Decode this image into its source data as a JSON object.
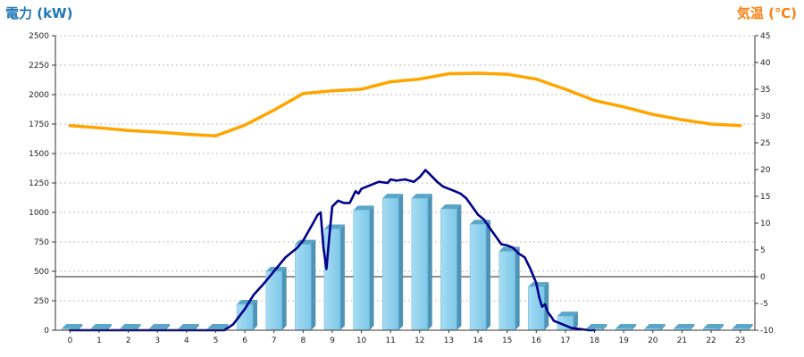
{
  "chart_data": {
    "type": "bar+line",
    "title": "",
    "left_axis": {
      "label": "電力 (kW)",
      "min": 0,
      "max": 2500,
      "ticks": [
        0,
        250,
        500,
        750,
        1000,
        1250,
        1500,
        1750,
        2000,
        2250,
        2500
      ]
    },
    "right_axis": {
      "label": "気温 (℃)",
      "min": -10,
      "max": 45,
      "ticks": [
        -10,
        -5,
        0,
        5,
        10,
        15,
        20,
        25,
        30,
        35,
        40,
        45
      ]
    },
    "x_ticks": [
      0,
      1,
      2,
      3,
      4,
      5,
      6,
      7,
      8,
      9,
      10,
      11,
      12,
      13,
      14,
      15,
      16,
      17,
      18,
      19,
      20,
      21,
      22,
      23
    ],
    "grid": true,
    "reference_line": {
      "axis": "right",
      "value": 0
    },
    "series": [
      {
        "type": "bar",
        "axis": "left",
        "values": [
          0,
          0,
          0,
          0,
          0,
          0,
          220,
          500,
          730,
          860,
          1020,
          1120,
          1120,
          1030,
          900,
          670,
          370,
          120,
          10,
          5,
          5,
          5,
          5,
          5
        ]
      },
      {
        "type": "line",
        "axis": "left",
        "color": "#00008b",
        "x": [
          0,
          1,
          2,
          3,
          4,
          5,
          5.3,
          5.6,
          6,
          6.3,
          6.6,
          7,
          7.4,
          7.8,
          8,
          8.3,
          8.5,
          8.6,
          8.7,
          8.8,
          8.9,
          9,
          9.2,
          9.4,
          9.6,
          9.8,
          9.9,
          10,
          10.3,
          10.6,
          10.9,
          11,
          11.2,
          11.5,
          11.8,
          12,
          12.2,
          12.4,
          12.6,
          12.8,
          13,
          13.2,
          13.4,
          13.6,
          13.8,
          14,
          14.2,
          14.4,
          14.6,
          14.8,
          15,
          15.2,
          15.4,
          15.6,
          15.8,
          16,
          16.1,
          16.2,
          16.3,
          16.4,
          16.5,
          16.6,
          16.8,
          17,
          17.2,
          17.5,
          17.8,
          18
        ],
        "values": [
          0,
          0,
          0,
          0,
          0,
          0,
          0,
          50,
          180,
          300,
          380,
          500,
          620,
          700,
          760,
          890,
          980,
          1000,
          700,
          520,
          800,
          1050,
          1100,
          1080,
          1080,
          1180,
          1160,
          1200,
          1230,
          1260,
          1250,
          1280,
          1270,
          1280,
          1260,
          1300,
          1360,
          1310,
          1260,
          1220,
          1200,
          1180,
          1160,
          1120,
          1050,
          980,
          940,
          870,
          800,
          730,
          720,
          700,
          650,
          620,
          520,
          400,
          280,
          200,
          220,
          150,
          120,
          80,
          60,
          40,
          20,
          10,
          0,
          0
        ]
      },
      {
        "type": "line",
        "axis": "right",
        "color": "#ffa500",
        "x": [
          0,
          1,
          2,
          3,
          4,
          5,
          6,
          7,
          8,
          9,
          10,
          11,
          12,
          13,
          14,
          15,
          16,
          17,
          18,
          19,
          20,
          21,
          22,
          23
        ],
        "values": [
          28.2,
          27.8,
          27.3,
          27.0,
          26.6,
          26.3,
          28.3,
          31.1,
          34.2,
          34.7,
          35.0,
          36.4,
          36.9,
          37.9,
          38.0,
          37.8,
          36.9,
          35.0,
          32.9,
          31.7,
          30.3,
          29.3,
          28.5,
          28.2
        ]
      }
    ]
  }
}
